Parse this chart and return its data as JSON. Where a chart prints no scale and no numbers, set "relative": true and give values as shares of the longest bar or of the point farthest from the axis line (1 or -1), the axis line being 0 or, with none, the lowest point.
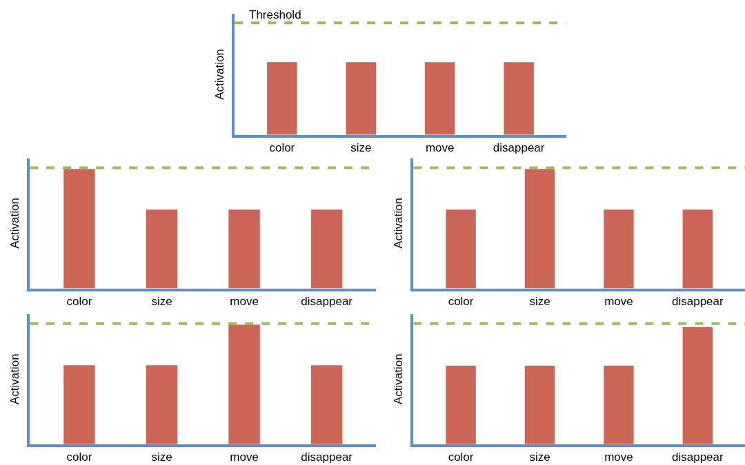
{
  "chart_data": [
    {
      "type": "bar",
      "relative": true,
      "ylabel": "Activation",
      "categories": [
        "color",
        "size",
        "move",
        "disappear"
      ],
      "values": [
        1,
        1,
        1,
        1
      ],
      "color": "#cd6557",
      "ref_lines": [
        {
          "axis": "y",
          "value": 1.54,
          "label": "Threshold",
          "color": "#9bbb59",
          "line_style": "dashed"
        }
      ]
    },
    {
      "type": "bar",
      "relative": true,
      "ylabel": "Activation",
      "categories": [
        "color",
        "size",
        "move",
        "disappear"
      ],
      "values": [
        1,
        0.66,
        0.66,
        0.66
      ],
      "color": "#cd6557",
      "ref_lines": [
        {
          "axis": "y",
          "value": 1.01,
          "color": "#9bbb59",
          "line_style": "dashed"
        }
      ]
    },
    {
      "type": "bar",
      "relative": true,
      "ylabel": "Activation",
      "categories": [
        "color",
        "size",
        "move",
        "disappear"
      ],
      "values": [
        0.66,
        1,
        0.66,
        0.66
      ],
      "color": "#cd6557",
      "ref_lines": [
        {
          "axis": "y",
          "value": 1.01,
          "color": "#9bbb59",
          "line_style": "dashed"
        }
      ]
    },
    {
      "type": "bar",
      "relative": true,
      "ylabel": "Activation",
      "categories": [
        "color",
        "size",
        "move",
        "disappear"
      ],
      "values": [
        0.66,
        0.66,
        1,
        0.66
      ],
      "color": "#cd6557",
      "ref_lines": [
        {
          "axis": "y",
          "value": 1.01,
          "color": "#9bbb59",
          "line_style": "dashed"
        }
      ]
    },
    {
      "type": "bar",
      "relative": true,
      "ylabel": "Activation",
      "categories": [
        "color",
        "size",
        "move",
        "disappear"
      ],
      "values": [
        0.67,
        0.67,
        0.67,
        1
      ],
      "color": "#cd6557",
      "ref_lines": [
        {
          "axis": "y",
          "value": 1.03,
          "color": "#9bbb59",
          "line_style": "dashed"
        }
      ]
    }
  ]
}
